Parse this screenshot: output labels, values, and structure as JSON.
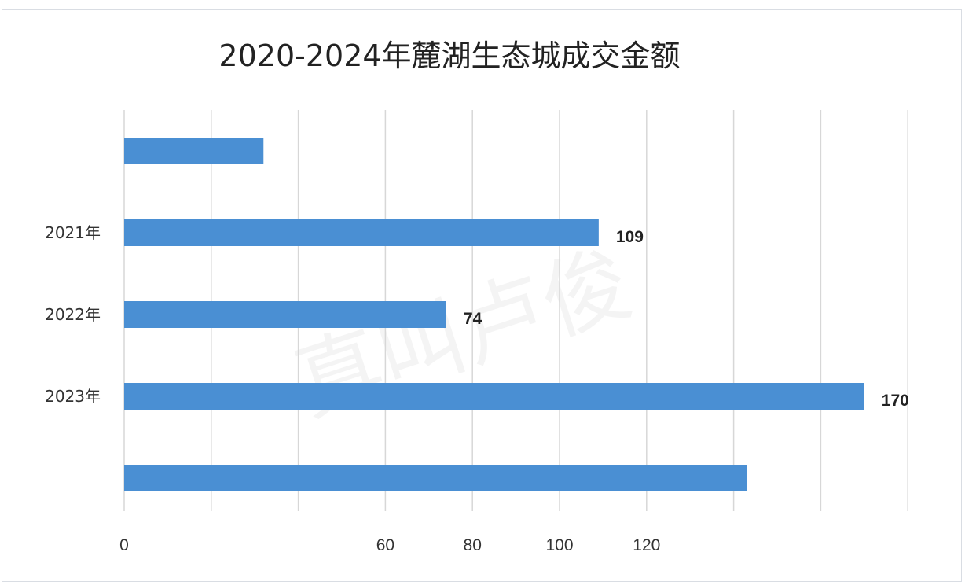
{
  "chart_data": {
    "type": "bar",
    "orientation": "horizontal",
    "title": "2020-2024年麓湖生态城成交金额",
    "categories": [
      "",
      "2021年",
      "2022年",
      "2023年",
      ""
    ],
    "values": [
      32,
      109,
      74,
      170,
      143
    ],
    "data_labels": [
      "",
      "109",
      "74",
      "170",
      ""
    ],
    "xlim": [
      0,
      180
    ],
    "x_ticks": [
      "0",
      "",
      "",
      "60",
      "80",
      "100",
      "120",
      "",
      "",
      ""
    ],
    "grid": true,
    "bar_color": "#4a8fd3",
    "grid_color": "#d7d7d7"
  }
}
